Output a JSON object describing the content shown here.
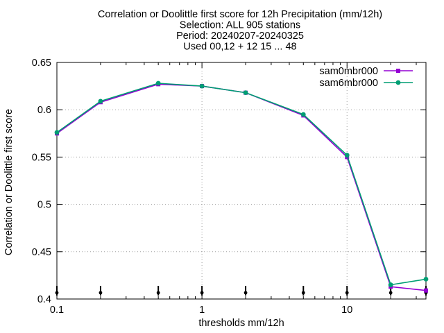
{
  "chart_data": {
    "type": "line",
    "title_lines": [
      "Correlation or Doolittle first score  for 12h Precipitation (mm/12h)",
      "Selection: ALL    905 stations",
      "Period: 20240207-20240325",
      "Used 00,12 + 12 15 ... 48"
    ],
    "xlabel": "thresholds mm/12h",
    "ylabel": "Correlation or Doolittle first score",
    "xscale": "log",
    "xlim": [
      0.1,
      35
    ],
    "ylim": [
      0.4,
      0.65
    ],
    "x_ticks": [
      0.1,
      1,
      10
    ],
    "x_tick_labels": [
      "0.1",
      "1",
      "10"
    ],
    "y_ticks": [
      0.4,
      0.45,
      0.5,
      0.55,
      0.6,
      0.65
    ],
    "y_tick_labels": [
      "0.4",
      "0.45",
      "0.5",
      "0.55",
      "0.6",
      "0.65"
    ],
    "grid": true,
    "legend_position": "top-right",
    "threshold_markers": [
      0.1,
      0.2,
      0.5,
      1,
      2,
      5,
      10,
      20,
      35
    ],
    "x": [
      0.1,
      0.2,
      0.5,
      1,
      2,
      5,
      10,
      20,
      35
    ],
    "series": [
      {
        "name": "sam0mbr000",
        "color": "#9400d3",
        "values": [
          0.575,
          0.608,
          0.627,
          0.625,
          0.618,
          0.594,
          0.55,
          0.413,
          0.409
        ]
      },
      {
        "name": "sam6mbr000",
        "color": "#009e73",
        "values": [
          0.576,
          0.609,
          0.628,
          0.625,
          0.618,
          0.595,
          0.552,
          0.415,
          0.421
        ]
      }
    ]
  }
}
